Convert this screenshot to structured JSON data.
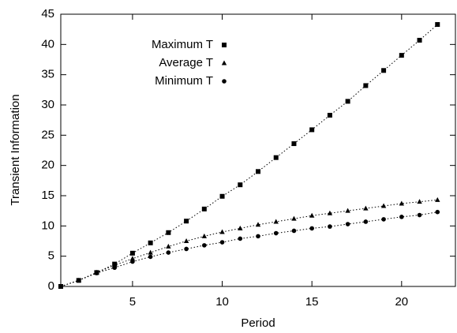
{
  "chart_data": {
    "type": "scatter",
    "x_label": "Period",
    "y_label": "Transient Information",
    "x": [
      1,
      2,
      3,
      4,
      5,
      6,
      7,
      8,
      9,
      10,
      11,
      12,
      13,
      14,
      15,
      16,
      17,
      18,
      19,
      20,
      21,
      22
    ],
    "series": [
      {
        "name": "Maximum T",
        "color": "#000000",
        "marker": "square",
        "values": [
          0,
          1.0,
          2.3,
          3.7,
          5.5,
          7.2,
          8.9,
          10.8,
          12.8,
          14.9,
          16.8,
          19.0,
          21.3,
          23.6,
          25.9,
          28.3,
          30.6,
          33.2,
          35.7,
          38.2,
          40.7,
          43.3
        ]
      },
      {
        "name": "Average T",
        "color": "#000000",
        "marker": "triangle",
        "values": [
          0,
          1.0,
          2.3,
          3.5,
          4.6,
          5.6,
          6.6,
          7.5,
          8.3,
          9.0,
          9.6,
          10.2,
          10.7,
          11.2,
          11.7,
          12.1,
          12.5,
          12.9,
          13.3,
          13.7,
          14.0,
          14.3
        ]
      },
      {
        "name": "Minimum T",
        "color": "#000000",
        "marker": "circle",
        "values": [
          0,
          1.0,
          2.2,
          3.1,
          4.1,
          4.9,
          5.6,
          6.2,
          6.8,
          7.3,
          7.9,
          8.3,
          8.8,
          9.2,
          9.6,
          9.9,
          10.3,
          10.7,
          11.1,
          11.5,
          11.8,
          12.3
        ]
      }
    ],
    "xlim": [
      1,
      23
    ],
    "xticks": [
      5,
      10,
      15,
      20
    ],
    "ylim": [
      0,
      45
    ],
    "yticks": [
      0,
      5,
      10,
      15,
      20,
      25,
      30,
      35,
      40,
      45
    ],
    "grid": false,
    "legend": "upper left"
  }
}
